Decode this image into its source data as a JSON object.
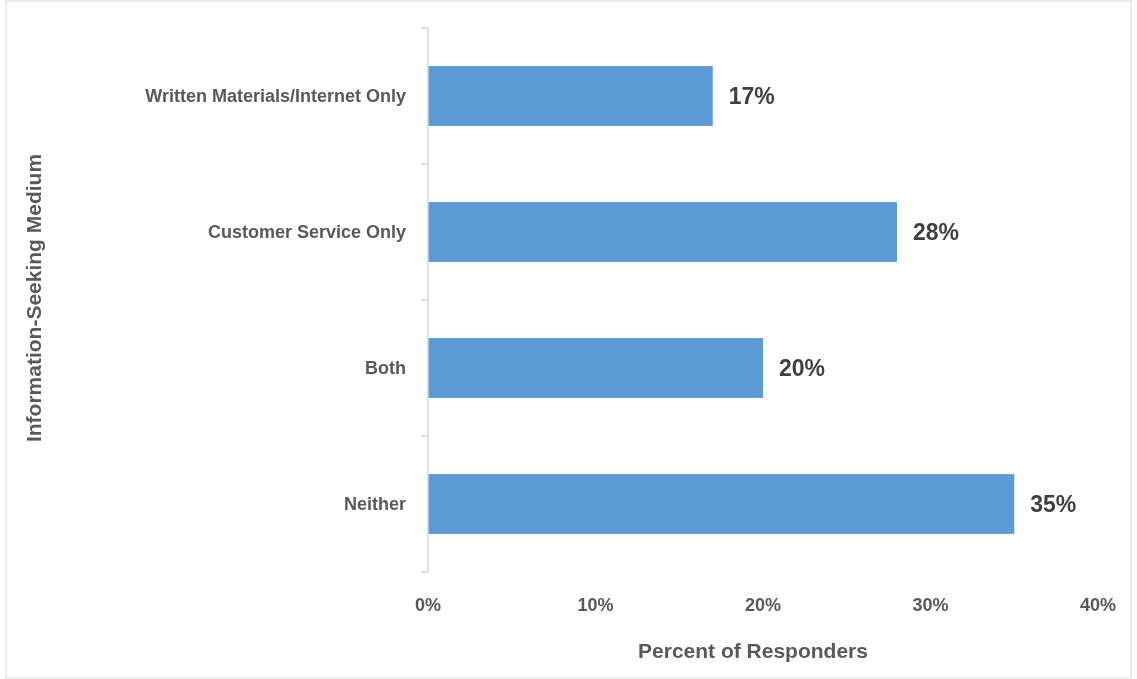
{
  "chart_data": {
    "type": "bar",
    "orientation": "horizontal",
    "xlabel": "Percent of Responders",
    "ylabel": "Information-Seeking Medium",
    "categories": [
      "Written Materials/Internet Only",
      "Customer Service Only",
      "Both",
      "Neither"
    ],
    "values": [
      17,
      28,
      20,
      35
    ],
    "value_labels": [
      "17%",
      "28%",
      "20%",
      "35%"
    ],
    "color": "#5b9bd5",
    "xlim": [
      0,
      40
    ],
    "xticks": [
      {
        "value": 0,
        "label": "0%"
      },
      {
        "value": 10,
        "label": "10%"
      },
      {
        "value": 20,
        "label": "20%"
      },
      {
        "value": 30,
        "label": "30%"
      },
      {
        "value": 40,
        "label": "40%"
      }
    ],
    "grid": false
  }
}
